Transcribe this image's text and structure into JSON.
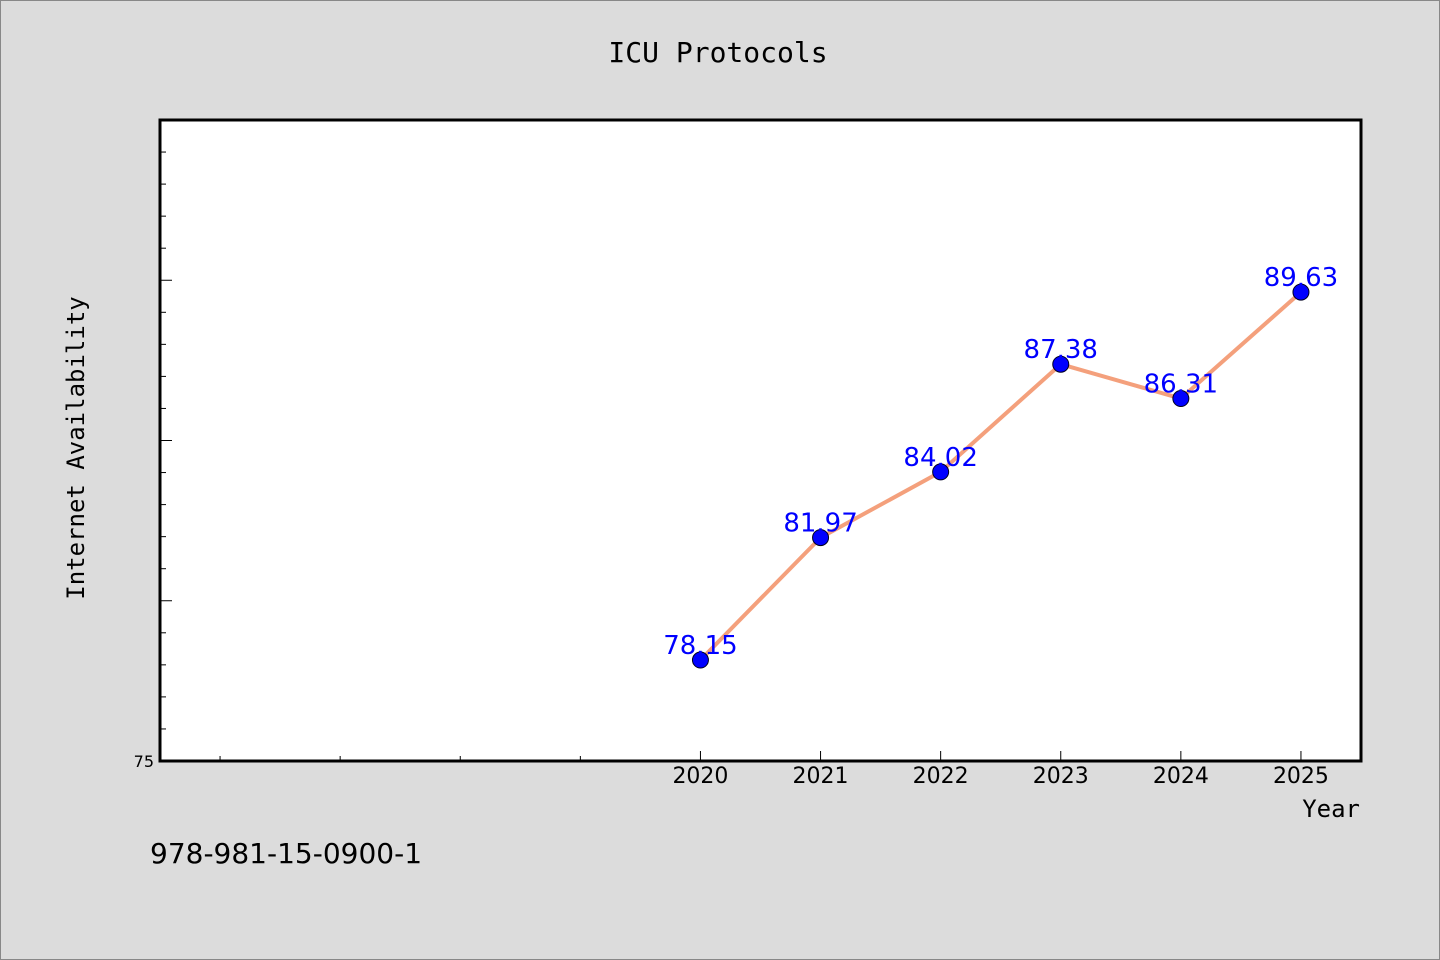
{
  "chart_data": {
    "type": "line",
    "title": "ICU Protocols",
    "xlabel": "Year",
    "ylabel": "Internet Availability",
    "categories": [
      "2020",
      "2021",
      "2022",
      "2023",
      "2024",
      "2025"
    ],
    "series": [
      {
        "values": [
          78.15,
          81.97,
          84.02,
          87.38,
          86.31,
          89.63
        ],
        "data_labels": [
          "78.15",
          "81.97",
          "84.02",
          "87.38",
          "86.31",
          "89.63"
        ]
      }
    ],
    "xlim": [
      2015.5,
      2025.5
    ],
    "ylim": [
      75,
      95
    ],
    "y_tick_labels": [
      "75"
    ],
    "y_minor_step": 1,
    "y_major_step": 5,
    "x_minor_ticks": [
      2016,
      2017,
      2018,
      2019
    ],
    "grid": false,
    "line_color": "#f4a07c",
    "marker_color": "#0000ff",
    "label_color": "#0000ff"
  },
  "footer": {
    "text": "978-981-15-0900-1"
  }
}
